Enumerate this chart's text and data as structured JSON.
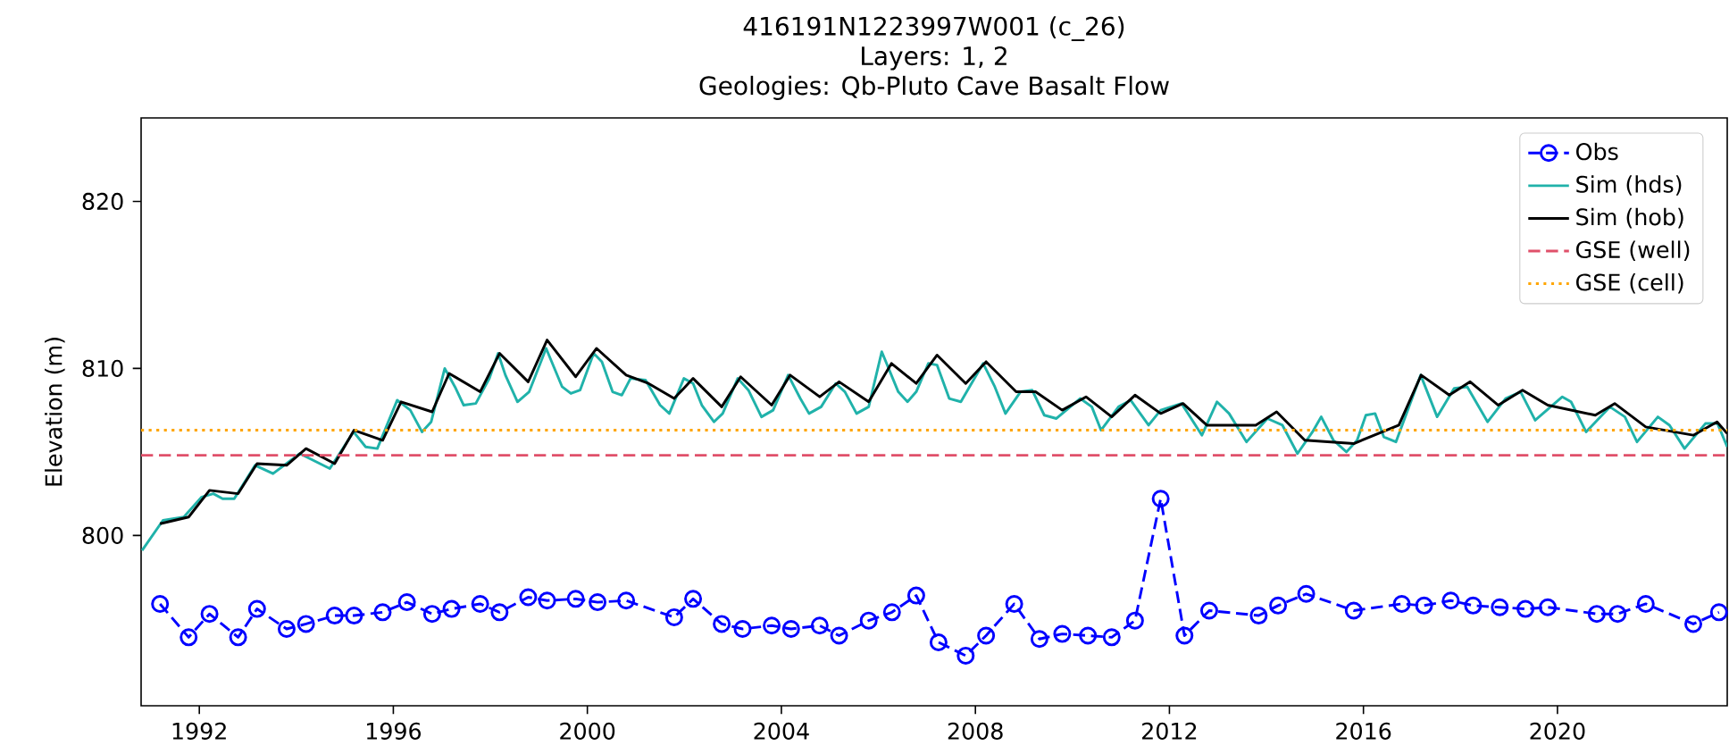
{
  "chart_data": {
    "type": "line",
    "title": "416191N1223997W001 (c_26)",
    "subtitle": "Layers: 1, 2",
    "annotations": [
      "Geologies: Qb-Pluto Cave Basalt Flow"
    ],
    "ylabel": "Elevation (m)",
    "xlim": [
      1990.8,
      2023.5
    ],
    "ylim": [
      789.8,
      825
    ],
    "xticks": [
      1992,
      1996,
      2000,
      2004,
      2008,
      2012,
      2016,
      2020
    ],
    "yticks": [
      800,
      810,
      820
    ],
    "legend": "top right",
    "series": [
      {
        "name": "Obs",
        "color": "#0000ff",
        "marker": "circle",
        "line_style": "dashed",
        "x": [
          1991.19,
          1991.78,
          1992.21,
          1992.8,
          1993.19,
          1993.8,
          1994.2,
          1994.79,
          1995.19,
          1995.78,
          1996.28,
          1996.8,
          1997.2,
          1997.79,
          1998.19,
          1998.78,
          1999.17,
          1999.76,
          2000.21,
          2000.8,
          2001.79,
          2002.18,
          2002.77,
          2003.2,
          2003.8,
          2004.2,
          2004.79,
          2005.19,
          2005.8,
          2006.28,
          2006.78,
          2007.24,
          2007.8,
          2008.22,
          2008.8,
          2009.32,
          2009.79,
          2010.32,
          2010.81,
          2011.29,
          2011.82,
          2012.31,
          2012.82,
          2013.84,
          2014.24,
          2014.82,
          2015.8,
          2016.79,
          2017.25,
          2017.8,
          2018.26,
          2018.81,
          2019.34,
          2019.8,
          2020.81,
          2021.24,
          2021.82,
          2022.8,
          2023.33
        ],
        "values": [
          795.9,
          793.9,
          795.3,
          793.9,
          795.6,
          794.4,
          794.7,
          795.2,
          795.2,
          795.4,
          796.0,
          795.3,
          795.6,
          795.9,
          795.4,
          796.3,
          796.1,
          796.2,
          796.0,
          796.1,
          795.1,
          796.2,
          794.7,
          794.4,
          794.6,
          794.4,
          794.6,
          794.0,
          794.9,
          795.4,
          796.4,
          793.6,
          792.8,
          794.0,
          795.9,
          793.8,
          794.1,
          794.0,
          793.9,
          794.9,
          802.2,
          794.0,
          795.5,
          795.2,
          795.8,
          796.5,
          795.5,
          795.9,
          795.8,
          796.1,
          795.8,
          795.7,
          795.6,
          795.7,
          795.3,
          795.3,
          795.9,
          794.7,
          795.4
        ]
      },
      {
        "name": "Sim (hds)",
        "color": "#20b2aa",
        "marker": "none",
        "line_style": "solid",
        "x": [
          1990.82,
          1991.25,
          1991.68,
          1992.05,
          1992.29,
          1992.48,
          1992.72,
          1993.15,
          1993.52,
          1994.07,
          1994.69,
          1995.18,
          1995.43,
          1995.67,
          1996.08,
          1996.35,
          1996.59,
          1996.78,
          1997.06,
          1997.27,
          1997.45,
          1997.7,
          1997.98,
          1998.16,
          1998.31,
          1998.56,
          1998.8,
          1999.15,
          1999.48,
          1999.66,
          1999.85,
          2000.13,
          2000.3,
          2000.52,
          2000.71,
          2000.89,
          2001.2,
          2001.5,
          2001.69,
          2001.99,
          2002.18,
          2002.36,
          2002.61,
          2002.79,
          2003.1,
          2003.32,
          2003.59,
          2003.83,
          2004.14,
          2004.39,
          2004.57,
          2004.82,
          2005.12,
          2005.31,
          2005.55,
          2005.8,
          2006.07,
          2006.41,
          2006.6,
          2006.78,
          2007.03,
          2007.21,
          2007.46,
          2007.7,
          2008.16,
          2008.4,
          2008.62,
          2008.93,
          2009.17,
          2009.42,
          2009.67,
          2010.16,
          2010.4,
          2010.59,
          2010.95,
          2011.2,
          2011.57,
          2011.82,
          2012.25,
          2012.67,
          2012.98,
          2013.23,
          2013.59,
          2014.02,
          2014.33,
          2014.64,
          2014.95,
          2015.13,
          2015.38,
          2015.65,
          2015.87,
          2016.05,
          2016.24,
          2016.42,
          2016.67,
          2017.18,
          2017.52,
          2017.87,
          2018.14,
          2018.56,
          2018.93,
          2019.24,
          2019.54,
          2020.1,
          2020.28,
          2020.59,
          2021.08,
          2021.39,
          2021.64,
          2022.07,
          2022.31,
          2022.62,
          2023.05,
          2023.3,
          2023.5
        ],
        "values": [
          799.1,
          800.9,
          801.1,
          802.3,
          802.5,
          802.2,
          802.2,
          804.2,
          803.7,
          804.9,
          804.0,
          806.2,
          805.3,
          805.2,
          808.1,
          807.5,
          806.2,
          806.8,
          810.0,
          808.9,
          807.8,
          807.9,
          809.4,
          810.9,
          809.6,
          808.0,
          808.6,
          811.2,
          808.9,
          808.5,
          808.7,
          810.9,
          810.4,
          808.6,
          808.4,
          809.4,
          809.3,
          807.8,
          807.3,
          809.4,
          809.1,
          807.8,
          806.8,
          807.3,
          809.4,
          808.7,
          807.1,
          807.5,
          809.6,
          808.2,
          807.3,
          807.7,
          809.1,
          808.6,
          807.3,
          807.7,
          811.0,
          808.6,
          808.0,
          808.6,
          810.3,
          810.2,
          808.2,
          808.0,
          810.3,
          808.9,
          807.3,
          808.6,
          808.7,
          807.2,
          807.0,
          808.2,
          807.7,
          806.3,
          807.7,
          808.1,
          806.6,
          807.5,
          807.9,
          806.0,
          808.0,
          807.3,
          805.6,
          807.0,
          806.6,
          804.9,
          806.2,
          807.1,
          805.7,
          805.0,
          805.7,
          807.2,
          807.3,
          805.9,
          805.6,
          809.6,
          807.1,
          808.8,
          808.9,
          806.8,
          808.2,
          808.6,
          806.9,
          808.3,
          808.0,
          806.2,
          807.7,
          807.1,
          805.6,
          807.1,
          806.6,
          805.2,
          806.7,
          806.7,
          805.3
        ]
      },
      {
        "name": "Sim (hob)",
        "color": "#000000",
        "marker": "none",
        "line_style": "solid",
        "x": [
          1991.19,
          1991.78,
          1992.21,
          1992.8,
          1993.19,
          1993.8,
          1994.2,
          1994.79,
          1995.19,
          1995.78,
          1996.16,
          1996.8,
          1997.15,
          1997.79,
          1998.19,
          1998.78,
          1999.17,
          1999.76,
          2000.19,
          2000.8,
          2001.26,
          2001.79,
          2002.18,
          2002.77,
          2003.16,
          2003.8,
          2004.18,
          2004.79,
          2005.19,
          2005.8,
          2006.27,
          2006.78,
          2007.21,
          2007.8,
          2008.22,
          2008.84,
          2009.24,
          2009.79,
          2010.28,
          2010.81,
          2011.29,
          2011.82,
          2012.28,
          2012.77,
          2013.78,
          2014.21,
          2014.79,
          2015.8,
          2016.73,
          2017.19,
          2017.77,
          2018.2,
          2018.78,
          2019.28,
          2019.8,
          2020.78,
          2021.18,
          2021.82,
          2022.8,
          2023.29,
          2023.5
        ],
        "values": [
          800.7,
          801.1,
          802.7,
          802.5,
          804.3,
          804.2,
          805.2,
          804.3,
          806.3,
          805.7,
          808.0,
          807.4,
          809.7,
          808.6,
          810.9,
          809.2,
          811.7,
          809.5,
          811.2,
          809.6,
          809.1,
          808.2,
          809.4,
          807.7,
          809.5,
          807.8,
          809.6,
          808.3,
          809.2,
          808.0,
          810.3,
          809.1,
          810.8,
          809.1,
          810.4,
          808.6,
          808.6,
          807.5,
          808.3,
          807.1,
          808.4,
          807.3,
          807.9,
          806.6,
          806.6,
          807.4,
          805.7,
          805.5,
          806.6,
          809.6,
          808.4,
          809.2,
          807.8,
          808.7,
          807.8,
          807.2,
          807.9,
          806.5,
          806.0,
          806.8,
          806.1
        ]
      }
    ],
    "ref_lines": [
      {
        "axis": "y",
        "value": 804.8,
        "label": "GSE (well)",
        "color": "#e0506a",
        "line_style": "dashed"
      },
      {
        "axis": "y",
        "value": 806.3,
        "label": "GSE (cell)",
        "color": "#ffa500",
        "line_style": "dotted"
      }
    ]
  }
}
